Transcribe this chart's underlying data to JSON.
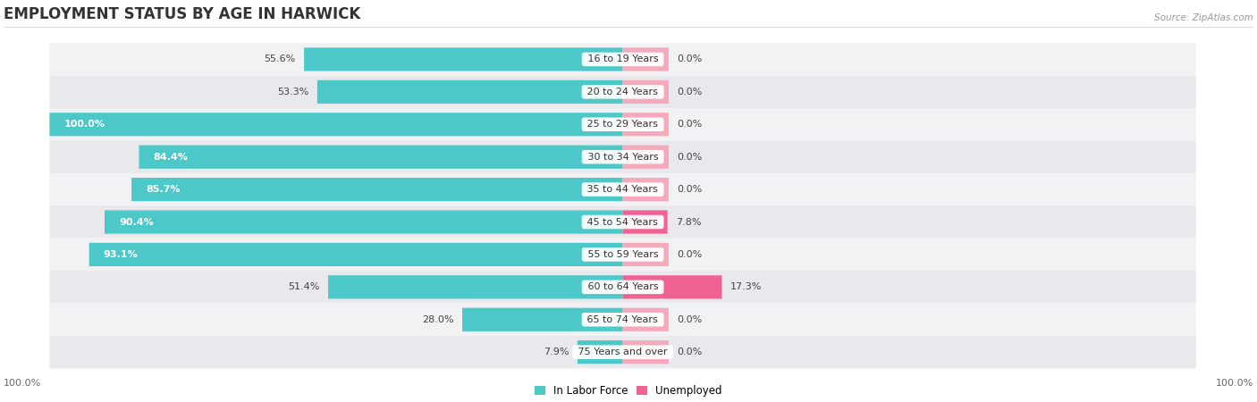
{
  "title": "EMPLOYMENT STATUS BY AGE IN HARWICK",
  "source": "Source: ZipAtlas.com",
  "categories": [
    "16 to 19 Years",
    "20 to 24 Years",
    "25 to 29 Years",
    "30 to 34 Years",
    "35 to 44 Years",
    "45 to 54 Years",
    "55 to 59 Years",
    "60 to 64 Years",
    "65 to 74 Years",
    "75 Years and over"
  ],
  "labor_force": [
    55.6,
    53.3,
    100.0,
    84.4,
    85.7,
    90.4,
    93.1,
    51.4,
    28.0,
    7.9
  ],
  "unemployed": [
    0.0,
    0.0,
    0.0,
    0.0,
    0.0,
    7.8,
    0.0,
    17.3,
    0.0,
    0.0
  ],
  "labor_force_color": "#4DC8C8",
  "unemployed_color_strong": "#F06292",
  "unemployed_color_light": "#F4AABB",
  "row_bg_even": "#F2F2F5",
  "row_bg_odd": "#E8E8ED",
  "legend_labor": "In Labor Force",
  "legend_unemployed": "Unemployed",
  "axis_label_left": "100.0%",
  "axis_label_right": "100.0%",
  "max_value": 100.0,
  "figsize": [
    14.06,
    4.5
  ],
  "dpi": 100
}
